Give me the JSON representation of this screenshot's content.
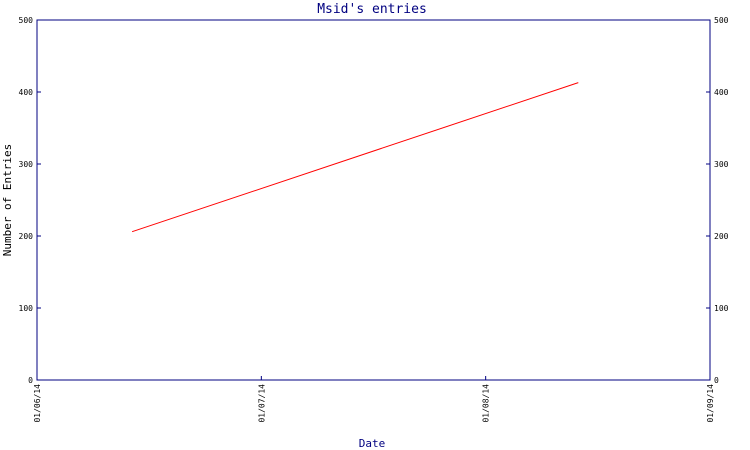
{
  "chart_data": {
    "type": "line",
    "title": "Msid's entries",
    "xlabel": "Date",
    "ylabel": "Number of Entries",
    "x_ticks": [
      "01/06/14",
      "01/07/14",
      "01/08/14",
      "01/09/14"
    ],
    "xlim": [
      "2014-06-01",
      "2014-09-01"
    ],
    "ylim": [
      0,
      500
    ],
    "y_ticks": [
      0,
      100,
      200,
      300,
      400,
      500
    ],
    "y_ticks_right": true,
    "grid": false,
    "series": [
      {
        "color": "#ff0000",
        "points": [
          {
            "x": "2014-06-14",
            "y": 206
          },
          {
            "x": "2014-08-14",
            "y": 413
          }
        ]
      }
    ],
    "colors": {
      "axis": "#000080",
      "title": "#000080",
      "line": "#ff0000"
    }
  }
}
